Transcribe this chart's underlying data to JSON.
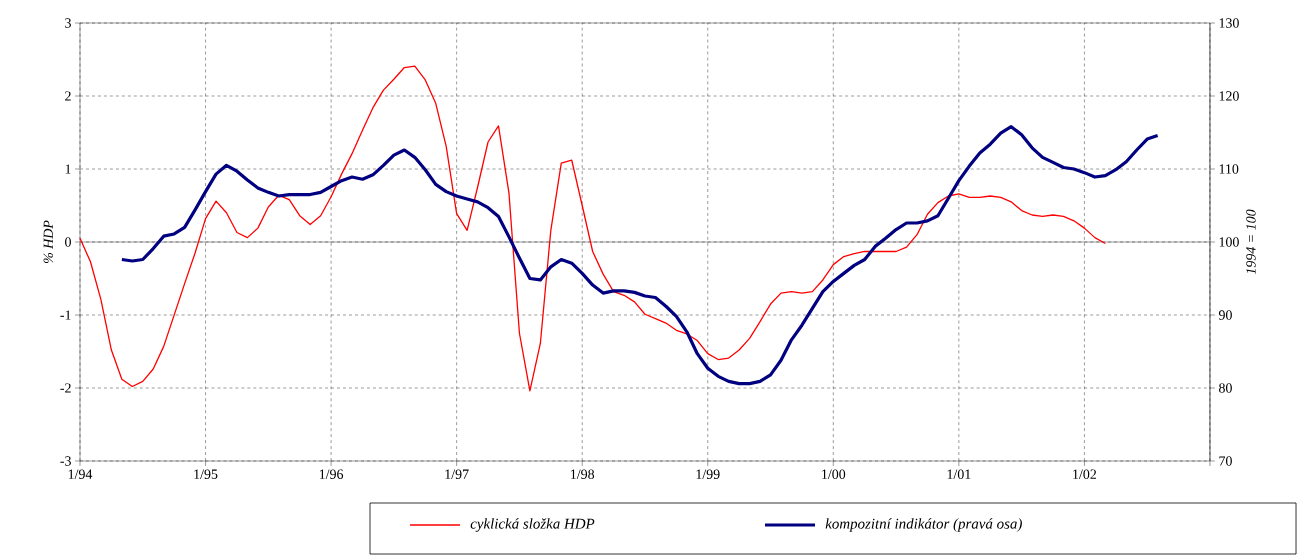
{
  "chart_data": {
    "type": "line",
    "ylabel": "% HDP",
    "y2label": "1994 = 100",
    "xlim": [
      "1994-01",
      "2003-01"
    ],
    "xticks": [
      {
        "value": "1994-01",
        "label": "1/94"
      },
      {
        "value": "1995-01",
        "label": "1/95"
      },
      {
        "value": "1996-01",
        "label": "1/96"
      },
      {
        "value": "1997-01",
        "label": "1/97"
      },
      {
        "value": "1998-01",
        "label": "1/98"
      },
      {
        "value": "1999-01",
        "label": "1/99"
      },
      {
        "value": "2000-01",
        "label": "1/00"
      },
      {
        "value": "2001-01",
        "label": "1/01"
      },
      {
        "value": "2002-01",
        "label": "1/02"
      },
      {
        "value": "2003-01",
        "label": null
      }
    ],
    "ylim": [
      -3,
      3
    ],
    "yticks": [
      -3,
      -2,
      -1,
      0,
      1,
      2,
      3
    ],
    "y2lim": [
      70,
      130
    ],
    "y2ticks": [
      70,
      80,
      90,
      100,
      110,
      120,
      130
    ],
    "grid": true,
    "legend": "bottom",
    "ref_lines": [
      {
        "axis": "y",
        "value": 0,
        "color": "#000000",
        "line_style": "solid"
      }
    ],
    "series": [
      {
        "name": "cyklická složka HDP",
        "color": "#ff0000",
        "x": [
          "1994-01",
          "1994-02",
          "1994-03",
          "1994-04",
          "1994-05",
          "1994-06",
          "1994-07",
          "1994-08",
          "1994-09",
          "1994-10",
          "1994-11",
          "1994-12",
          "1995-01",
          "1995-02",
          "1995-03",
          "1995-04",
          "1995-05",
          "1995-06",
          "1995-07",
          "1995-08",
          "1995-09",
          "1995-10",
          "1995-11",
          "1995-12",
          "1996-01",
          "1996-02",
          "1996-03",
          "1996-04",
          "1996-05",
          "1996-06",
          "1996-07",
          "1996-08",
          "1996-09",
          "1996-10",
          "1996-11",
          "1996-12",
          "1997-01",
          "1997-02",
          "1997-03",
          "1997-04",
          "1997-05",
          "1997-06",
          "1997-07",
          "1997-08",
          "1997-09",
          "1997-10",
          "1997-11",
          "1997-12",
          "1998-01",
          "1998-02",
          "1998-03",
          "1998-04",
          "1998-05",
          "1998-06",
          "1998-07",
          "1998-08",
          "1998-09",
          "1998-10",
          "1998-11",
          "1998-12",
          "1999-01",
          "1999-02",
          "1999-03",
          "1999-04",
          "1999-05",
          "1999-06",
          "1999-07",
          "1999-08",
          "1999-09",
          "1999-10",
          "1999-11",
          "1999-12",
          "2000-01",
          "2000-02",
          "2000-03",
          "2000-04",
          "2000-05",
          "2000-06",
          "2000-07",
          "2000-08",
          "2000-09",
          "2000-10",
          "2000-11",
          "2000-12",
          "2001-01",
          "2001-02",
          "2001-03",
          "2001-04",
          "2001-05",
          "2001-06",
          "2001-07",
          "2001-08",
          "2001-09",
          "2001-10",
          "2001-11",
          "2001-12",
          "2002-01",
          "2002-02",
          "2002-03"
        ],
        "values": [
          0.05,
          -0.27,
          -0.79,
          -1.48,
          -1.88,
          -1.98,
          -1.91,
          -1.74,
          -1.43,
          -1.0,
          -0.57,
          -0.15,
          0.32,
          0.56,
          0.4,
          0.13,
          0.06,
          0.19,
          0.48,
          0.64,
          0.58,
          0.36,
          0.24,
          0.36,
          0.62,
          0.93,
          1.21,
          1.53,
          1.84,
          2.08,
          2.23,
          2.39,
          2.41,
          2.22,
          1.9,
          1.31,
          0.39,
          0.16,
          0.75,
          1.37,
          1.59,
          0.67,
          -1.25,
          -2.04,
          -1.39,
          0.16,
          1.08,
          1.12,
          0.5,
          -0.13,
          -0.44,
          -0.68,
          -0.73,
          -0.82,
          -0.99,
          -1.05,
          -1.11,
          -1.21,
          -1.26,
          -1.35,
          -1.53,
          -1.61,
          -1.59,
          -1.48,
          -1.32,
          -1.09,
          -0.85,
          -0.7,
          -0.68,
          -0.7,
          -0.68,
          -0.52,
          -0.31,
          -0.2,
          -0.16,
          -0.13,
          -0.13,
          -0.13,
          -0.13,
          -0.07,
          0.1,
          0.38,
          0.54,
          0.63,
          0.66,
          0.61,
          0.61,
          0.63,
          0.61,
          0.55,
          0.43,
          0.37,
          0.35,
          0.37,
          0.35,
          0.29,
          0.19,
          0.06,
          -0.02
        ]
      },
      {
        "name": "kompozitní indikátor (pravá osa)",
        "color": "#000080",
        "axis": "y2",
        "x": [
          "1994-05",
          "1994-06",
          "1994-07",
          "1994-08",
          "1994-09",
          "1994-10",
          "1994-11",
          "1994-12",
          "1995-01",
          "1995-02",
          "1995-03",
          "1995-04",
          "1995-05",
          "1995-06",
          "1995-07",
          "1995-08",
          "1995-09",
          "1995-10",
          "1995-11",
          "1995-12",
          "1996-01",
          "1996-02",
          "1996-03",
          "1996-04",
          "1996-05",
          "1996-06",
          "1996-07",
          "1996-08",
          "1996-09",
          "1996-10",
          "1996-11",
          "1996-12",
          "1997-01",
          "1997-02",
          "1997-03",
          "1997-04",
          "1997-05",
          "1997-06",
          "1997-07",
          "1997-08",
          "1997-09",
          "1997-10",
          "1997-11",
          "1997-12",
          "1998-01",
          "1998-02",
          "1998-03",
          "1998-04",
          "1998-05",
          "1998-06",
          "1998-07",
          "1998-08",
          "1998-09",
          "1998-10",
          "1998-11",
          "1998-12",
          "1999-01",
          "1999-02",
          "1999-03",
          "1999-04",
          "1999-05",
          "1999-06",
          "1999-07",
          "1999-08",
          "1999-09",
          "1999-10",
          "1999-11",
          "1999-12",
          "2000-01",
          "2000-02",
          "2000-03",
          "2000-04",
          "2000-05",
          "2000-06",
          "2000-07",
          "2000-08",
          "2000-09",
          "2000-10",
          "2000-11",
          "2000-12",
          "2001-01",
          "2001-02",
          "2001-03",
          "2001-04",
          "2001-05",
          "2001-06",
          "2001-07",
          "2001-08",
          "2001-09",
          "2001-10",
          "2001-11",
          "2001-12",
          "2002-01",
          "2002-02",
          "2002-03",
          "2002-04",
          "2002-05",
          "2002-06",
          "2002-07",
          "2002-08"
        ],
        "values": [
          97.6,
          97.4,
          97.6,
          99.1,
          100.8,
          101.1,
          102.0,
          104.4,
          106.9,
          109.3,
          110.5,
          109.7,
          108.5,
          107.4,
          106.8,
          106.3,
          106.5,
          106.5,
          106.5,
          106.8,
          107.6,
          108.4,
          108.9,
          108.6,
          109.2,
          110.5,
          111.9,
          112.6,
          111.6,
          109.9,
          107.9,
          106.9,
          106.3,
          105.9,
          105.5,
          104.7,
          103.5,
          100.7,
          97.8,
          95.0,
          94.8,
          96.6,
          97.6,
          97.1,
          95.7,
          94.1,
          93.0,
          93.3,
          93.3,
          93.1,
          92.6,
          92.4,
          91.2,
          89.8,
          87.7,
          84.7,
          82.7,
          81.6,
          80.9,
          80.6,
          80.6,
          80.9,
          81.8,
          83.8,
          86.6,
          88.6,
          90.9,
          93.2,
          94.6,
          95.7,
          96.8,
          97.6,
          99.4,
          100.5,
          101.7,
          102.6,
          102.6,
          102.9,
          103.6,
          106.0,
          108.4,
          110.4,
          112.2,
          113.4,
          114.9,
          115.8,
          114.7,
          112.9,
          111.6,
          110.9,
          110.2,
          110.0,
          109.5,
          108.9,
          109.1,
          109.9,
          111.0,
          112.6,
          114.1,
          114.6
        ]
      }
    ]
  }
}
